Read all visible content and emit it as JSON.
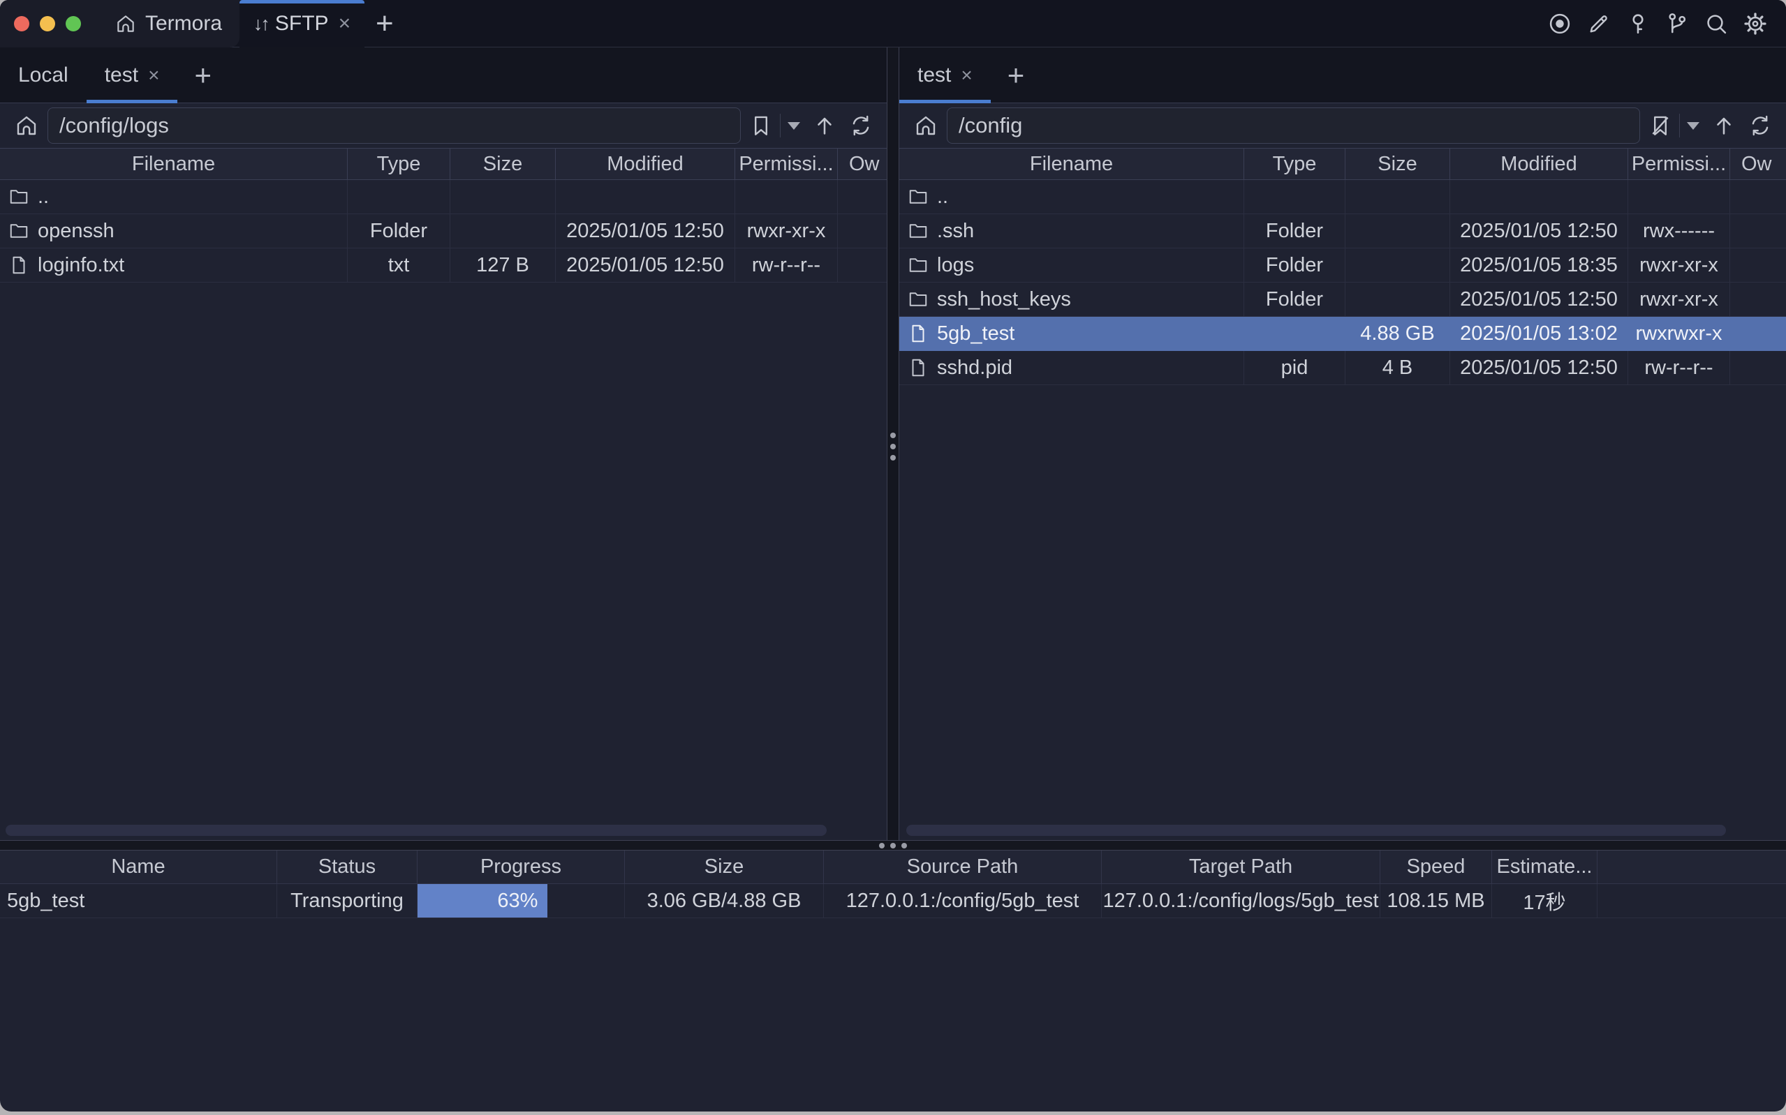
{
  "colors": {
    "accent_blue": "#4a7dd0",
    "selection_blue": "#5470ad",
    "progress_blue": "#6282c8",
    "titlebar_light": "#1a1c28",
    "tabbar_dark": "#13151f",
    "pane_bg": "#1f2231",
    "traffic_red": "#ed6a5e",
    "traffic_yellow": "#f4bf4f",
    "traffic_green": "#61c554"
  },
  "titlebar": {
    "app_tab_label": "Termora",
    "sftp_tab_label": "SFTP",
    "sftp_arrows": "↓↑",
    "close_glyph": "×",
    "new_tab_glyph": "+",
    "toolbar_icons": [
      "record",
      "edit",
      "key",
      "branch",
      "search",
      "settings"
    ]
  },
  "left": {
    "tab_local": "Local",
    "tab_session": "test",
    "tab_close": "×",
    "tab_add": "+",
    "path": "/config/logs",
    "headers": {
      "filename": "Filename",
      "type": "Type",
      "size": "Size",
      "modified": "Modified",
      "permissions": "Permissi...",
      "owner": "Ow"
    },
    "rows": [
      {
        "name": "..",
        "type": "",
        "size": "",
        "modified": "",
        "permissions": ""
      },
      {
        "name": "openssh",
        "type": "Folder",
        "size": "",
        "modified": "2025/01/05 12:50",
        "permissions": "rwxr-xr-x"
      },
      {
        "name": "loginfo.txt",
        "type": "txt",
        "size": "127 B",
        "modified": "2025/01/05 12:50",
        "permissions": "rw-r--r--"
      }
    ]
  },
  "right": {
    "tab_session": "test",
    "tab_close": "×",
    "tab_add": "+",
    "path": "/config",
    "headers": {
      "filename": "Filename",
      "type": "Type",
      "size": "Size",
      "modified": "Modified",
      "permissions": "Permissi...",
      "owner": "Ow"
    },
    "rows": [
      {
        "name": "..",
        "type": "",
        "size": "",
        "modified": "",
        "permissions": ""
      },
      {
        "name": ".ssh",
        "type": "Folder",
        "size": "",
        "modified": "2025/01/05 12:50",
        "permissions": "rwx------"
      },
      {
        "name": "logs",
        "type": "Folder",
        "size": "",
        "modified": "2025/01/05 18:35",
        "permissions": "rwxr-xr-x"
      },
      {
        "name": "ssh_host_keys",
        "type": "Folder",
        "size": "",
        "modified": "2025/01/05 12:50",
        "permissions": "rwxr-xr-x"
      },
      {
        "name": "5gb_test",
        "type": "",
        "size": "4.88 GB",
        "modified": "2025/01/05 13:02",
        "permissions": "rwxrwxr-x"
      },
      {
        "name": "sshd.pid",
        "type": "pid",
        "size": "4 B",
        "modified": "2025/01/05 12:50",
        "permissions": "rw-r--r--"
      }
    ]
  },
  "transfers": {
    "headers": {
      "name": "Name",
      "status": "Status",
      "progress": "Progress",
      "size": "Size",
      "source": "Source Path",
      "target": "Target Path",
      "speed": "Speed",
      "estimate": "Estimate..."
    },
    "row": {
      "name": "5gb_test",
      "status": "Transporting",
      "progress_label": "63%",
      "progress_percent": 63,
      "size": "3.06 GB/4.88 GB",
      "source": "127.0.0.1:/config/5gb_test",
      "target": "127.0.0.1:/config/logs/5gb_test",
      "speed": "108.15 MB",
      "estimate": "17秒"
    }
  }
}
